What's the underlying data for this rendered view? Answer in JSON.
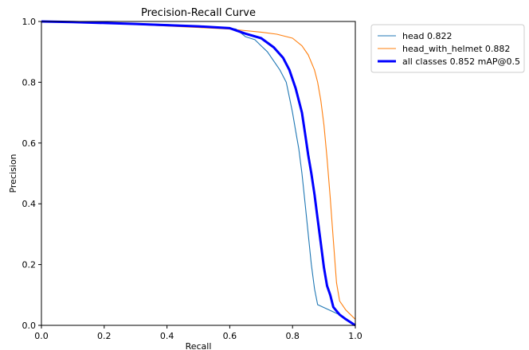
{
  "chart_data": {
    "type": "line",
    "title": "Precision-Recall Curve",
    "xlabel": "Recall",
    "ylabel": "Precision",
    "xlim": [
      0,
      1
    ],
    "ylim": [
      0,
      1
    ],
    "xticks": [
      "0.0",
      "0.2",
      "0.4",
      "0.6",
      "0.8",
      "1.0"
    ],
    "yticks": [
      "0.0",
      "0.2",
      "0.4",
      "0.6",
      "0.8",
      "1.0"
    ],
    "grid": false,
    "legend_position": "outside-top-right",
    "series": [
      {
        "name": "head 0.822",
        "color": "#1f77b4",
        "linewidth": "thin",
        "points": [
          [
            0,
            1
          ],
          [
            0.1,
            0.998
          ],
          [
            0.2,
            0.995
          ],
          [
            0.3,
            0.993
          ],
          [
            0.4,
            0.99
          ],
          [
            0.5,
            0.985
          ],
          [
            0.6,
            0.978
          ],
          [
            0.62,
            0.975
          ],
          [
            0.65,
            0.95
          ],
          [
            0.68,
            0.94
          ],
          [
            0.7,
            0.92
          ],
          [
            0.72,
            0.9
          ],
          [
            0.74,
            0.87
          ],
          [
            0.76,
            0.84
          ],
          [
            0.78,
            0.8
          ],
          [
            0.79,
            0.75
          ],
          [
            0.8,
            0.7
          ],
          [
            0.81,
            0.64
          ],
          [
            0.82,
            0.58
          ],
          [
            0.83,
            0.5
          ],
          [
            0.84,
            0.4
          ],
          [
            0.85,
            0.3
          ],
          [
            0.86,
            0.2
          ],
          [
            0.87,
            0.12
          ],
          [
            0.88,
            0.068
          ],
          [
            0.96,
            0.03
          ],
          [
            1.0,
            0.0
          ]
        ]
      },
      {
        "name": "head_with_helmet 0.882",
        "color": "#ff7f0e",
        "linewidth": "thin",
        "points": [
          [
            0,
            1
          ],
          [
            0.1,
            0.998
          ],
          [
            0.2,
            0.994
          ],
          [
            0.3,
            0.99
          ],
          [
            0.4,
            0.985
          ],
          [
            0.5,
            0.98
          ],
          [
            0.6,
            0.975
          ],
          [
            0.65,
            0.97
          ],
          [
            0.7,
            0.965
          ],
          [
            0.75,
            0.958
          ],
          [
            0.8,
            0.945
          ],
          [
            0.83,
            0.92
          ],
          [
            0.85,
            0.89
          ],
          [
            0.87,
            0.84
          ],
          [
            0.88,
            0.8
          ],
          [
            0.89,
            0.74
          ],
          [
            0.9,
            0.66
          ],
          [
            0.91,
            0.55
          ],
          [
            0.92,
            0.42
          ],
          [
            0.93,
            0.28
          ],
          [
            0.94,
            0.14
          ],
          [
            0.95,
            0.08
          ],
          [
            0.97,
            0.05
          ],
          [
            1.0,
            0.02
          ]
        ]
      },
      {
        "name": "all classes 0.852 mAP@0.5",
        "color": "#0000ff",
        "linewidth": "thick",
        "points": [
          [
            0,
            1
          ],
          [
            0.1,
            0.998
          ],
          [
            0.2,
            0.995
          ],
          [
            0.3,
            0.992
          ],
          [
            0.4,
            0.988
          ],
          [
            0.5,
            0.984
          ],
          [
            0.6,
            0.978
          ],
          [
            0.65,
            0.96
          ],
          [
            0.7,
            0.945
          ],
          [
            0.74,
            0.915
          ],
          [
            0.77,
            0.88
          ],
          [
            0.79,
            0.84
          ],
          [
            0.81,
            0.78
          ],
          [
            0.83,
            0.7
          ],
          [
            0.84,
            0.63
          ],
          [
            0.85,
            0.56
          ],
          [
            0.86,
            0.5
          ],
          [
            0.87,
            0.43
          ],
          [
            0.88,
            0.35
          ],
          [
            0.89,
            0.27
          ],
          [
            0.9,
            0.19
          ],
          [
            0.91,
            0.13
          ],
          [
            0.92,
            0.1
          ],
          [
            0.93,
            0.06
          ],
          [
            0.95,
            0.035
          ],
          [
            0.97,
            0.02
          ],
          [
            1.0,
            0.0
          ]
        ]
      }
    ]
  }
}
